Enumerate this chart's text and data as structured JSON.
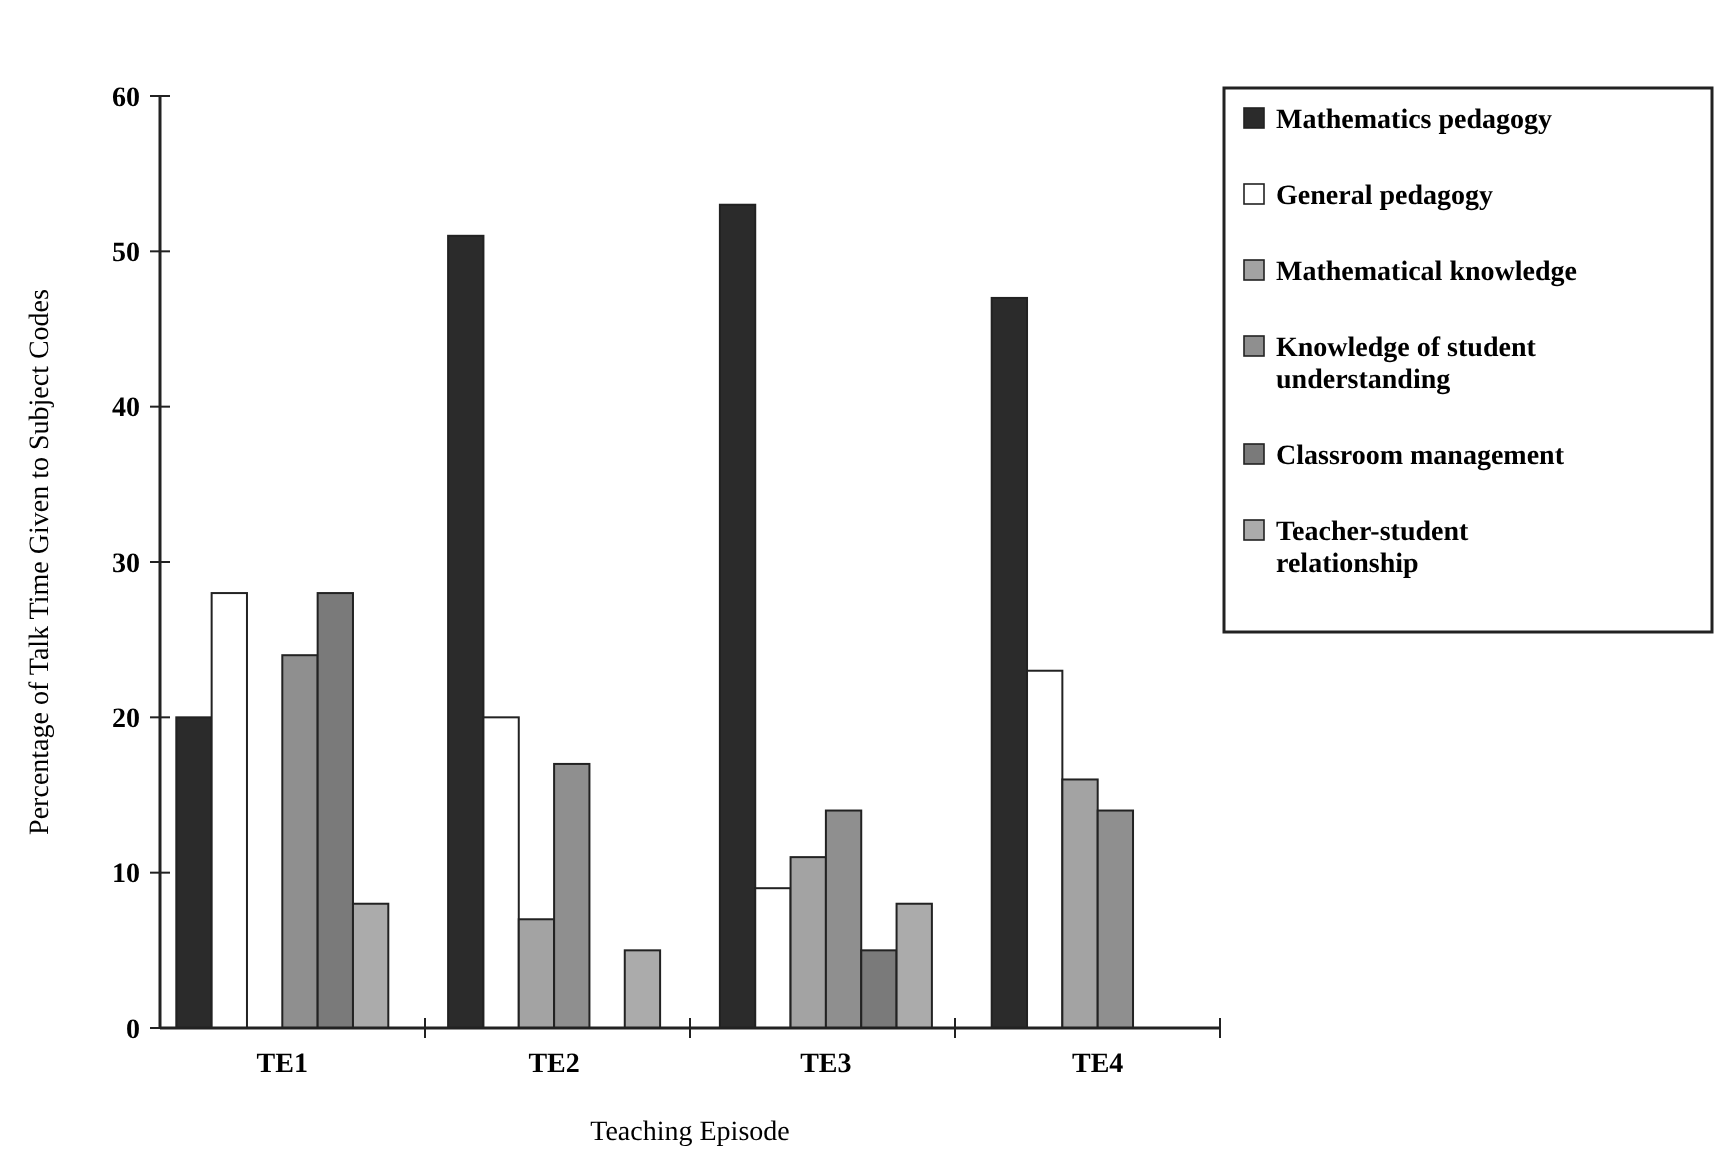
{
  "chart_data": {
    "type": "bar",
    "xlabel": "Teaching Episode",
    "ylabel": "Percentage of Talk Time Given to Subject Codes",
    "categories": [
      "TE1",
      "TE2",
      "TE3",
      "TE4"
    ],
    "series": [
      {
        "name": "Mathematics pedagogy",
        "color": "#2b2b2b",
        "values": [
          20,
          51,
          53,
          47
        ]
      },
      {
        "name": "General pedagogy",
        "color": "#ffffff",
        "values": [
          28,
          20,
          9,
          23
        ]
      },
      {
        "name": "Mathematical knowledge",
        "color": "#a3a3a3",
        "values": [
          0,
          7,
          11,
          16
        ]
      },
      {
        "name": "Knowledge of student understanding",
        "color": "#8f8f8f",
        "values": [
          24,
          17,
          14,
          14
        ]
      },
      {
        "name": "Classroom management",
        "color": "#7a7a7a",
        "values": [
          28,
          0,
          5,
          0
        ]
      },
      {
        "name": "Teacher-student relationship",
        "color": "#ababab",
        "values": [
          8,
          5,
          8,
          0
        ]
      }
    ],
    "ylim": [
      0,
      60
    ],
    "yticks": [
      0,
      10,
      20,
      30,
      40,
      50,
      60
    ],
    "grid": false,
    "legend": "top right"
  }
}
